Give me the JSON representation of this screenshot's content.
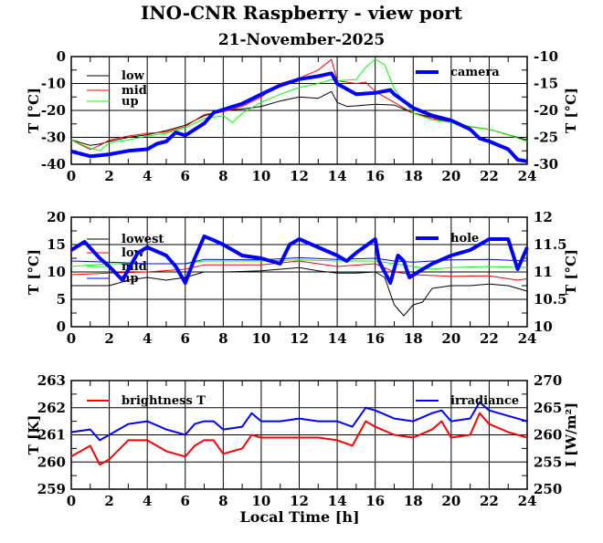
{
  "title": "INO-CNR Raspberry - view port",
  "subtitle": "21-November-2025",
  "xlabel": "Local Time [h]",
  "chart_data": [
    {
      "type": "line",
      "xlim": [
        0,
        24
      ],
      "xticks": [
        "0",
        "2",
        "4",
        "6",
        "8",
        "10",
        "12",
        "14",
        "16",
        "18",
        "20",
        "22",
        "24"
      ],
      "ylabel": "T [°C]",
      "ylim": [
        -40,
        0
      ],
      "yticks": [
        "-40",
        "-30",
        "-20",
        "-10",
        "0"
      ],
      "ylabel_right": "T [°C]",
      "ylim_right": [
        -30,
        -10
      ],
      "yticks_right": [
        "-30",
        "-25",
        "-20",
        "-15",
        "-10"
      ],
      "grid": true,
      "series": [
        {
          "name": "low",
          "axis": "left",
          "color": "#000000",
          "width": 1,
          "x": [
            0,
            1,
            1.5,
            2,
            3,
            4,
            5,
            6,
            7,
            8,
            9,
            10,
            11,
            12,
            13,
            13.7,
            14,
            14.5,
            15,
            16,
            17,
            18,
            19,
            20,
            21,
            22,
            23,
            24
          ],
          "y": [
            -31,
            -33,
            -32.5,
            -31.5,
            -30,
            -29,
            -27.5,
            -25.5,
            -22,
            -20,
            -19.5,
            -18.5,
            -16.5,
            -15,
            -15.5,
            -13,
            -17,
            -18.5,
            -18.3,
            -17.7,
            -18,
            -21,
            -22.5,
            -24.5,
            -26,
            -27,
            -29,
            -31
          ]
        },
        {
          "name": "mid",
          "axis": "left",
          "color": "#ff0000",
          "width": 1,
          "x": [
            0,
            1,
            1.5,
            2,
            3,
            4,
            5,
            6,
            7,
            8,
            9,
            10,
            11,
            12,
            13,
            13.7,
            14,
            15,
            15.5,
            16,
            17,
            18,
            19,
            20,
            21,
            22,
            23,
            24
          ],
          "y": [
            -31,
            -34.5,
            -33,
            -31,
            -29.5,
            -28.5,
            -28,
            -26,
            -21.5,
            -20.5,
            -18.5,
            -15,
            -10,
            -8,
            -5,
            -1,
            -9,
            -10,
            -9.5,
            -13,
            -17,
            -21,
            -23,
            -24.5,
            -26,
            -27,
            -29,
            -31.5
          ]
        },
        {
          "name": "up",
          "axis": "left",
          "color": "#00ff00",
          "width": 1,
          "x": [
            0,
            1,
            1.5,
            2,
            3,
            4,
            5,
            6,
            7,
            8,
            8.5,
            9,
            10,
            11,
            12,
            13,
            13.7,
            14,
            15,
            15.5,
            16,
            16.5,
            17,
            18,
            19,
            20,
            21,
            22,
            23,
            24
          ],
          "y": [
            -31,
            -34,
            -35,
            -32,
            -31,
            -29.5,
            -28.5,
            -26.5,
            -23,
            -22,
            -24.5,
            -21,
            -17,
            -14,
            -11.5,
            -10,
            -8.5,
            -9,
            -8.5,
            -4,
            -1,
            -3,
            -12,
            -21,
            -23.5,
            -24.5,
            -26,
            -27,
            -29,
            -31.5
          ]
        },
        {
          "name": "camera",
          "axis": "right",
          "color": "#0000ff",
          "width": 4,
          "x": [
            0,
            1,
            1.5,
            2,
            3,
            4,
            4.5,
            5,
            5.5,
            6,
            7,
            7.5,
            8,
            9,
            10,
            11,
            12,
            13,
            13.7,
            14,
            15,
            16,
            16.8,
            17,
            18,
            19,
            20,
            21,
            21.5,
            22,
            23,
            23.5,
            24
          ],
          "y": [
            -27.6,
            -28.5,
            -28.35,
            -28.15,
            -27.5,
            -27.2,
            -26.2,
            -25.75,
            -24.1,
            -24.65,
            -22.4,
            -20.4,
            -19.85,
            -18.75,
            -17,
            -15.35,
            -14.2,
            -13.65,
            -13.1,
            -15.05,
            -17,
            -16.75,
            -16.2,
            -17,
            -19.55,
            -20.95,
            -21.85,
            -23.5,
            -25.2,
            -25.75,
            -27.2,
            -29.15,
            -29.45
          ]
        }
      ]
    },
    {
      "type": "line",
      "xlim": [
        0,
        24
      ],
      "xticks": [
        "0",
        "2",
        "4",
        "6",
        "8",
        "10",
        "12",
        "14",
        "16",
        "18",
        "20",
        "22",
        "24"
      ],
      "ylabel": "T [°C]",
      "ylim": [
        0,
        20
      ],
      "yticks": [
        "0",
        "5",
        "10",
        "15",
        "20"
      ],
      "ylabel_right": "T [°C]",
      "ylim_right": [
        10,
        12
      ],
      "yticks_right": [
        "10",
        "10.5",
        "11",
        "11.5",
        "12"
      ],
      "grid": true,
      "series": [
        {
          "name": "lowest",
          "axis": "left",
          "color": "#000000",
          "width": 1,
          "x": [
            0,
            2,
            3,
            4,
            5,
            6,
            7,
            8,
            10,
            12,
            13,
            14,
            15,
            16,
            16.5,
            17,
            17.5,
            18,
            18.5,
            19,
            20,
            21,
            22,
            23,
            24
          ],
          "y": [
            7.5,
            7.5,
            8.5,
            9,
            8.5,
            9,
            10,
            10,
            10.2,
            10.8,
            10.2,
            9.8,
            9.8,
            10,
            9,
            4,
            2,
            4,
            4.5,
            7,
            7.5,
            7.5,
            7.8,
            7.5,
            6.5
          ]
        },
        {
          "name": "low",
          "axis": "left",
          "color": "#ff0000",
          "width": 1,
          "x": [
            0,
            2,
            4,
            6,
            7,
            10,
            12,
            14,
            16,
            17,
            18,
            20,
            22,
            23.5,
            24
          ],
          "y": [
            9.5,
            9.8,
            10,
            10.5,
            11.3,
            11.3,
            12,
            11,
            11.5,
            10,
            9.5,
            9.2,
            9.3,
            8.5,
            8.8
          ]
        },
        {
          "name": "mid",
          "axis": "left",
          "color": "#00ff00",
          "width": 1,
          "x": [
            0,
            2,
            4,
            6,
            7,
            10,
            12,
            14,
            16,
            17,
            18,
            19,
            20,
            22,
            24
          ],
          "y": [
            11,
            11.5,
            11.5,
            11.5,
            12,
            12,
            12.2,
            12,
            12,
            11.5,
            11,
            10.5,
            10.8,
            11,
            10.8
          ]
        },
        {
          "name": "up",
          "axis": "left",
          "color": "#0000ff",
          "width": 1,
          "x": [
            0,
            2,
            4,
            6,
            7,
            10,
            12,
            14,
            16,
            17,
            18,
            20,
            22,
            24
          ],
          "y": [
            12,
            11.8,
            11.5,
            11.5,
            12.3,
            12.2,
            12.6,
            12.3,
            12.5,
            12,
            11.8,
            12.2,
            12.3,
            12
          ]
        },
        {
          "name": "hole",
          "axis": "right",
          "color": "#0000ff",
          "width": 4,
          "x": [
            0,
            0.7,
            1.5,
            2,
            2.7,
            3.5,
            4,
            5,
            5.5,
            6,
            6.5,
            7,
            7.5,
            8,
            9,
            10,
            11,
            11.5,
            12,
            13,
            14,
            14.5,
            15,
            16,
            16.2,
            16.8,
            17.2,
            17.5,
            17.8,
            18.5,
            19,
            20,
            21,
            22,
            23,
            23.5,
            24
          ],
          "y": [
            11.4,
            11.55,
            11.25,
            11.1,
            10.85,
            11.35,
            11.45,
            11.3,
            11.1,
            10.8,
            11.25,
            11.65,
            11.58,
            11.5,
            11.3,
            11.25,
            11.15,
            11.5,
            11.6,
            11.45,
            11.3,
            11.2,
            11.35,
            11.6,
            11.2,
            10.8,
            11.3,
            11.2,
            10.9,
            11.05,
            11.15,
            11.3,
            11.4,
            11.6,
            11.6,
            11.05,
            11.45
          ]
        }
      ]
    },
    {
      "type": "line",
      "xlim": [
        0,
        24
      ],
      "xticks": [
        "0",
        "2",
        "4",
        "6",
        "8",
        "10",
        "12",
        "14",
        "16",
        "18",
        "20",
        "22",
        "24"
      ],
      "ylabel": "T [K]",
      "ylim": [
        259,
        263
      ],
      "yticks": [
        "259",
        "260",
        "261",
        "262",
        "263"
      ],
      "ylabel_right": "I [W/m²]",
      "ylim_right": [
        250,
        270
      ],
      "yticks_right": [
        "250",
        "255",
        "260",
        "265",
        "270"
      ],
      "grid": true,
      "series": [
        {
          "name": "brightness T",
          "axis": "left",
          "color": "#ff0000",
          "width": 2,
          "x": [
            0,
            1,
            1.5,
            2,
            3,
            4,
            5,
            6,
            6.5,
            7,
            7.5,
            8,
            9,
            9.5,
            10,
            11,
            12,
            13,
            14,
            14.8,
            15.5,
            16,
            17,
            18,
            19,
            19.5,
            20,
            21,
            21.5,
            22,
            23,
            24
          ],
          "y": [
            260.2,
            260.6,
            259.9,
            260.1,
            260.8,
            260.8,
            260.4,
            260.2,
            260.6,
            260.8,
            260.8,
            260.3,
            260.5,
            261,
            260.9,
            260.9,
            260.9,
            260.9,
            260.8,
            260.6,
            261.5,
            261.3,
            261,
            260.9,
            261.2,
            261.5,
            260.9,
            261,
            261.8,
            261.4,
            261.1,
            260.9
          ]
        },
        {
          "name": "irradiance",
          "axis": "right",
          "color": "#0000ff",
          "width": 2,
          "x": [
            0,
            1,
            1.5,
            2,
            3,
            4,
            5,
            6,
            6.5,
            7,
            7.5,
            8,
            9,
            9.5,
            10,
            11,
            12,
            13,
            14,
            14.8,
            15.5,
            16,
            17,
            18,
            19,
            19.5,
            20,
            21,
            21.5,
            22,
            23,
            24
          ],
          "y": [
            260.5,
            261,
            259,
            260,
            262,
            262.5,
            261,
            260,
            262,
            262.5,
            262.5,
            261,
            261.5,
            264,
            262.5,
            262.5,
            263,
            262.5,
            262.5,
            261.5,
            265,
            264.5,
            263,
            262.5,
            264,
            264.5,
            262.5,
            263,
            266,
            264.5,
            263.5,
            262.5
          ]
        }
      ]
    }
  ]
}
